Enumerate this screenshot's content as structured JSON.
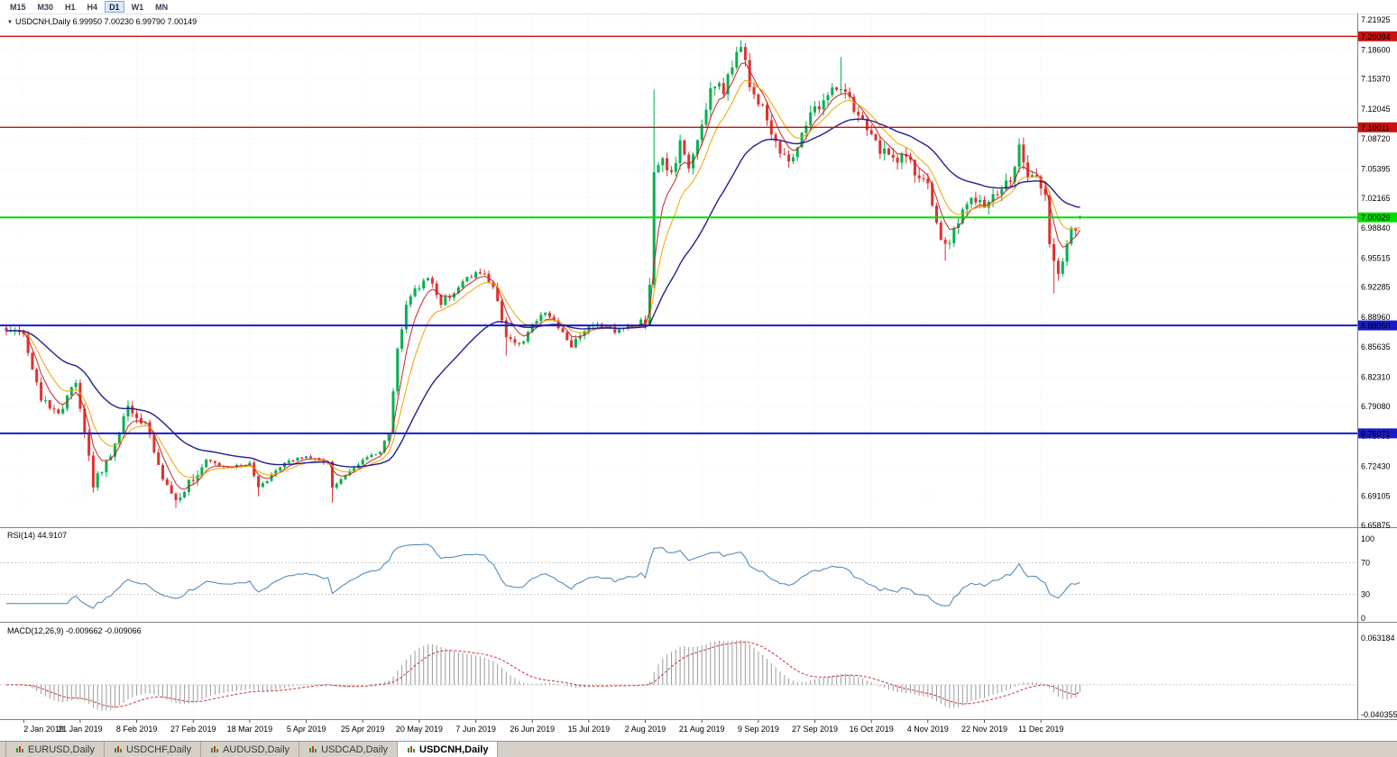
{
  "toolbar": {
    "timeframes": [
      "M15",
      "M30",
      "H1",
      "H4",
      "D1",
      "W1",
      "MN"
    ],
    "active": "D1"
  },
  "symbol_header": {
    "expander": "▼",
    "text": "USDCNH,Daily  6.99950 7.00230 6.99790 7.00149"
  },
  "rsi_label": "RSI(14) 44.9107",
  "macd_label": "MACD(12,26,9) -0.009662 -0.009066",
  "price_axis": {
    "ticks": [
      "7.21925",
      "7.18600",
      "7.15370",
      "7.12045",
      "7.08720",
      "7.05395",
      "7.02165",
      "6.98840",
      "6.95515",
      "6.92285",
      "6.88960",
      "6.85635",
      "6.82310",
      "6.79080",
      "6.75755",
      "6.72430",
      "6.69105",
      "6.65875"
    ]
  },
  "rsi_axis": [
    "100",
    "70",
    "30",
    "0"
  ],
  "macd_axis": {
    "top": "0.063184",
    "bottom": "-0.040355"
  },
  "levels": [
    {
      "price": 7.20094,
      "label": "7.20094",
      "color": "#cc1111",
      "width": 1.4
    },
    {
      "price": 7.10011,
      "label": "7.10011",
      "color": "#cc1111",
      "width": 1.4
    },
    {
      "price": 7.00029,
      "label": "7.00029",
      "color": "#00dd00",
      "width": 2
    },
    {
      "price": 6.8805,
      "label": "6.88050",
      "color": "#1a1acc",
      "width": 2
    },
    {
      "price": 6.76071,
      "label": "6.76071",
      "color": "#1a1acc",
      "width": 2
    }
  ],
  "date_axis": {
    "labels": [
      "2 Jan 2019",
      "21 Jan 2019",
      "8 Feb 2019",
      "27 Feb 2019",
      "18 Mar 2019",
      "5 Apr 2019",
      "25 Apr 2019",
      "20 May 2019",
      "7 Jun 2019",
      "26 Jun 2019",
      "15 Jul 2019",
      "2 Aug 2019",
      "21 Aug 2019",
      "9 Sep 2019",
      "27 Sep 2019",
      "16 Oct 2019",
      "4 Nov 2019",
      "22 Nov 2019",
      "11 Dec 2019"
    ]
  },
  "tabs": [
    {
      "label": "EURUSD,Daily",
      "active": false
    },
    {
      "label": "USDCHF,Daily",
      "active": false
    },
    {
      "label": "AUDUSD,Daily",
      "active": false
    },
    {
      "label": "USDCAD,Daily",
      "active": false
    },
    {
      "label": "USDCNH,Daily",
      "active": true
    }
  ],
  "chart_data": {
    "type": "candlestick",
    "symbol": "USDCNH",
    "timeframe": "Daily",
    "title": "USDCNH,Daily",
    "ohlc_last": {
      "open": "6.99950",
      "high": "7.00230",
      "low": "6.99790",
      "close": "7.00149"
    },
    "bars": 248,
    "seed": 123456789,
    "first_tick_index": 4,
    "tick_step": 13,
    "ylim": [
      6.65675,
      7.22625
    ],
    "anchors": [
      [
        0,
        6.878
      ],
      [
        4,
        6.87
      ],
      [
        8,
        6.8
      ],
      [
        12,
        6.782
      ],
      [
        16,
        6.82
      ],
      [
        20,
        6.705
      ],
      [
        24,
        6.736
      ],
      [
        28,
        6.792
      ],
      [
        32,
        6.77
      ],
      [
        36,
        6.712
      ],
      [
        39,
        6.688
      ],
      [
        42,
        6.705
      ],
      [
        46,
        6.73
      ],
      [
        52,
        6.722
      ],
      [
        56,
        6.728
      ],
      [
        58,
        6.7
      ],
      [
        64,
        6.73
      ],
      [
        69,
        6.736
      ],
      [
        74,
        6.728
      ],
      [
        75,
        6.702
      ],
      [
        82,
        6.73
      ],
      [
        86,
        6.742
      ],
      [
        88,
        6.76
      ],
      [
        90,
        6.855
      ],
      [
        92,
        6.9
      ],
      [
        94,
        6.92
      ],
      [
        97,
        6.935
      ],
      [
        100,
        6.905
      ],
      [
        103,
        6.918
      ],
      [
        106,
        6.932
      ],
      [
        109,
        6.94
      ],
      [
        112,
        6.925
      ],
      [
        115,
        6.87
      ],
      [
        118,
        6.858
      ],
      [
        121,
        6.88
      ],
      [
        124,
        6.895
      ],
      [
        127,
        6.878
      ],
      [
        130,
        6.856
      ],
      [
        133,
        6.876
      ],
      [
        136,
        6.882
      ],
      [
        140,
        6.875
      ],
      [
        144,
        6.882
      ],
      [
        147,
        6.885
      ],
      [
        148,
        6.93
      ],
      [
        149,
        7.048
      ],
      [
        151,
        7.06
      ],
      [
        153,
        7.045
      ],
      [
        155,
        7.08
      ],
      [
        157,
        7.06
      ],
      [
        159,
        7.09
      ],
      [
        161,
        7.125
      ],
      [
        163,
        7.15
      ],
      [
        165,
        7.14
      ],
      [
        167,
        7.17
      ],
      [
        169,
        7.192
      ],
      [
        171,
        7.15
      ],
      [
        174,
        7.12
      ],
      [
        177,
        7.085
      ],
      [
        180,
        7.06
      ],
      [
        183,
        7.095
      ],
      [
        186,
        7.12
      ],
      [
        189,
        7.135
      ],
      [
        192,
        7.148
      ],
      [
        195,
        7.12
      ],
      [
        198,
        7.095
      ],
      [
        201,
        7.075
      ],
      [
        204,
        7.065
      ],
      [
        207,
        7.07
      ],
      [
        210,
        7.04
      ],
      [
        212,
        7.035
      ],
      [
        214,
        6.99
      ],
      [
        216,
        6.968
      ],
      [
        218,
        6.985
      ],
      [
        220,
        7.005
      ],
      [
        222,
        7.025
      ],
      [
        225,
        7.01
      ],
      [
        228,
        7.03
      ],
      [
        231,
        7.04
      ],
      [
        233,
        7.08
      ],
      [
        235,
        7.05
      ],
      [
        237,
        7.04
      ],
      [
        239,
        7.03
      ],
      [
        240,
        6.965
      ],
      [
        242,
        6.935
      ],
      [
        244,
        6.975
      ],
      [
        246,
        6.99
      ],
      [
        247,
        7.0015
      ]
    ],
    "noise": [
      [
        0,
        0.0045
      ],
      [
        46,
        0.002
      ],
      [
        88,
        0.0035
      ],
      [
        115,
        0.003
      ],
      [
        147,
        0.006
      ]
    ],
    "wick_overrides": [
      {
        "i": 20,
        "low": 6.695
      },
      {
        "i": 39,
        "low": 6.678
      },
      {
        "i": 58,
        "low": 6.691
      },
      {
        "i": 75,
        "low": 6.684
      },
      {
        "i": 115,
        "low": 6.847
      },
      {
        "i": 149,
        "high": 7.142
      },
      {
        "i": 169,
        "high": 7.1965
      },
      {
        "i": 192,
        "high": 7.178
      },
      {
        "i": 216,
        "low": 6.952
      },
      {
        "i": 233,
        "high": 7.088
      },
      {
        "i": 241,
        "low": 6.916
      }
    ],
    "indicators": {
      "rsi": {
        "period": 14,
        "last": 44.9107,
        "levels": [
          70,
          30
        ]
      },
      "macd": {
        "fast": 12,
        "slow": 26,
        "signal": 9,
        "last_main": -0.009662,
        "last_signal": -0.009066,
        "scale_top": 0.063184,
        "scale_bottom": -0.040355
      },
      "moving_averages": [
        {
          "type": "ema",
          "period": 5,
          "color": "#cc2222"
        },
        {
          "type": "ema",
          "period": 10,
          "color": "#f0a500"
        },
        {
          "type": "ema",
          "period": 30,
          "color": "#20208f"
        }
      ]
    },
    "colors": {
      "up": "#00b050",
      "down": "#e03030",
      "rsi": "#4682b4",
      "macd_hist": "#9b9b9b",
      "macd_signal": "#cc3333",
      "grid": "#f0f0f0",
      "separator": "#808080"
    }
  }
}
